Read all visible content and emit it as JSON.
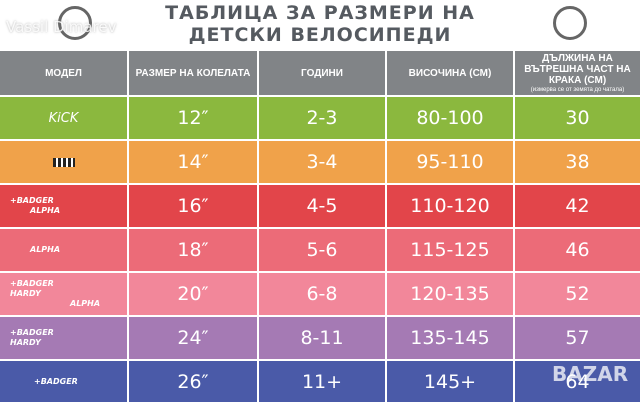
{
  "header": {
    "title_line1": "ТАБЛИЦА ЗА РАЗМЕРИ НА",
    "title_line2": "ДЕТСКИ ВЕЛОСИПЕДИ",
    "watermark": "Vassil Dimarev",
    "watermark_bottom": "BAZAR"
  },
  "table": {
    "columns": [
      {
        "label": "МОДЕЛ"
      },
      {
        "label": "РАЗМЕР НА КОЛЕЛАТА"
      },
      {
        "label": "ГОДИНИ"
      },
      {
        "label": "ВИСОЧИНА (СМ)"
      },
      {
        "label": "ДЪЛЖИНА НА ВЪТРЕШНА ЧАСТ НА КРАКА (СМ)",
        "note": "(измерва се от земята до чатала)"
      }
    ],
    "rows": [
      {
        "color": "#8bb83e",
        "brands": [
          "KiCK"
        ],
        "size": "12″",
        "age": "2-3",
        "height": "80-100",
        "inseam": "30"
      },
      {
        "color": "#f0a24a",
        "brands": [],
        "size": "14″",
        "age": "3-4",
        "height": "95-110",
        "inseam": "38"
      },
      {
        "color": "#e2454a",
        "brands": [
          "+BADGER",
          "ALPHA"
        ],
        "size": "16″",
        "age": "4-5",
        "height": "110-120",
        "inseam": "42"
      },
      {
        "color": "#ec6b78",
        "brands": [
          "ALPHA"
        ],
        "size": "18″",
        "age": "5-6",
        "height": "115-125",
        "inseam": "46"
      },
      {
        "color": "#f2879a",
        "brands": [
          "+BADGER",
          "HARDY",
          "ALPHA"
        ],
        "size": "20″",
        "age": "6-8",
        "height": "120-135",
        "inseam": "52"
      },
      {
        "color": "#a57ab4",
        "brands": [
          "+BADGER",
          "HARDY"
        ],
        "size": "24″",
        "age": "8-11",
        "height": "135-145",
        "inseam": "57"
      },
      {
        "color": "#4a5aa8",
        "brands": [
          "+BADGER"
        ],
        "size": "26″",
        "age": "11+",
        "height": "145+",
        "inseam": "64"
      }
    ]
  }
}
